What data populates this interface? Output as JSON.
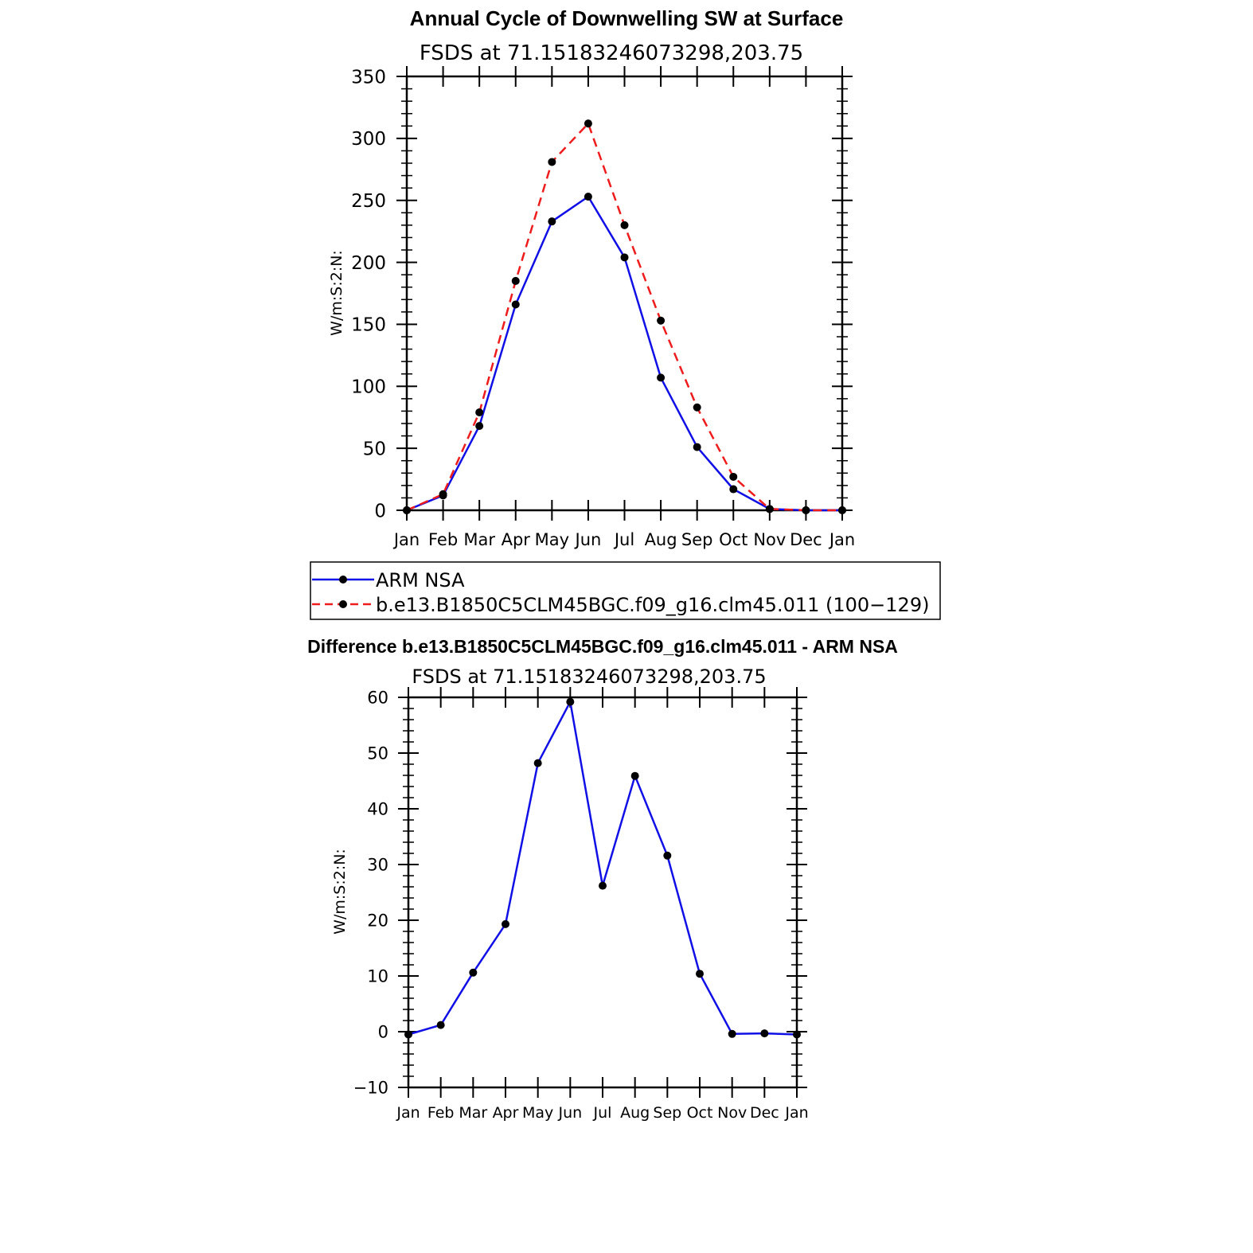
{
  "chart_data": [
    {
      "type": "line",
      "title": "Annual Cycle of Downwelling SW at Surface",
      "subtitle": "FSDS at 71.15183246073298,203.75",
      "xlabel": "",
      "ylabel": "W/m:S:2:N:",
      "categories": [
        "Jan",
        "Feb",
        "Mar",
        "Apr",
        "May",
        "Jun",
        "Jul",
        "Aug",
        "Sep",
        "Oct",
        "Nov",
        "Dec",
        "Jan"
      ],
      "ylim": [
        0,
        350
      ],
      "yticks": [
        0,
        50,
        100,
        150,
        200,
        250,
        300,
        350
      ],
      "series": [
        {
          "name": "ARM NSA",
          "color": "#1010e6",
          "dash": "solid",
          "values": [
            0,
            12,
            68,
            166,
            233,
            253,
            204,
            107,
            51,
            17,
            1,
            0,
            0
          ]
        },
        {
          "name": "b.e13.B1850C5CLM45BGC.f09_g16.clm45.011 (100−129)",
          "color": "#ee1c1c",
          "dash": "dashed",
          "values": [
            0,
            13,
            79,
            185,
            281,
            312,
            230,
            153,
            83,
            27,
            1,
            0,
            0
          ]
        }
      ],
      "legend": "below"
    },
    {
      "type": "line",
      "title": "Difference b.e13.B1850C5CLM45BGC.f09_g16.clm45.011 - ARM NSA",
      "subtitle": "FSDS at 71.15183246073298,203.75",
      "xlabel": "",
      "ylabel": "W/m:S:2:N:",
      "categories": [
        "Jan",
        "Feb",
        "Mar",
        "Apr",
        "May",
        "Jun",
        "Jul",
        "Aug",
        "Sep",
        "Oct",
        "Nov",
        "Dec",
        "Jan"
      ],
      "ylim": [
        -10,
        60
      ],
      "yticks": [
        -10,
        0,
        10,
        20,
        30,
        40,
        50,
        60
      ],
      "ytick_labels": [
        "−10",
        "0",
        "10",
        "20",
        "30",
        "40",
        "50",
        "60"
      ],
      "series": [
        {
          "name": "Difference",
          "color": "#1010e6",
          "dash": "solid",
          "values": [
            -0.5,
            1.2,
            10.6,
            19.3,
            48.2,
            59.2,
            26.2,
            45.9,
            31.6,
            10.4,
            -0.4,
            -0.3,
            -0.5
          ]
        }
      ]
    }
  ]
}
